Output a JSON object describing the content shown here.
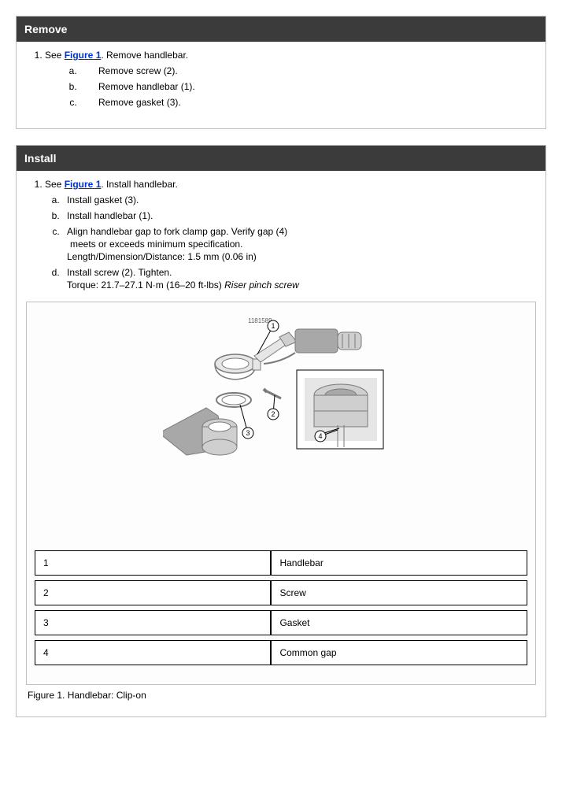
{
  "remove": {
    "title": "Remove",
    "step1_prefix": "See ",
    "step1_link": "Figure 1",
    "step1_suffix": ". Remove handlebar.",
    "substeps": [
      "Remove screw (2).",
      "Remove handlebar (1).",
      "Remove gasket (3)."
    ]
  },
  "install": {
    "title": "Install",
    "step1_prefix": "See ",
    "step1_link": "Figure 1",
    "step1_suffix": ". Install handlebar.",
    "a": "Install gasket (3).",
    "b": "Install handlebar (1).",
    "c_line1": "Align handlebar gap to fork clamp gap. Verify gap (4)",
    "c_line2": "meets or exceeds minimum specification.",
    "c_line3": "Length/Dimension/Distance: 1.5 mm (0.06 in)",
    "d_line1": "Install screw (2). Tighten.",
    "d_line2_prefix": "Torque: 21.7–27.1 N·m (16–20 ft-lbs) ",
    "d_line2_italic": "Riser pinch screw"
  },
  "diagram": {
    "code": "1181589",
    "callouts": [
      "1",
      "2",
      "3",
      "4"
    ],
    "colors": {
      "stroke": "#7a7a7a",
      "fill_light": "#e6e6e6",
      "fill_mid": "#cfcfcf",
      "fill_dark": "#a8a8a8",
      "text": "#5a5a5a"
    }
  },
  "legend": {
    "rows": [
      {
        "num": "1",
        "label": "Handlebar"
      },
      {
        "num": "2",
        "label": "Screw"
      },
      {
        "num": "3",
        "label": "Gasket"
      },
      {
        "num": "4",
        "label": "Common gap"
      }
    ]
  },
  "figure_caption": "Figure 1. Handlebar: Clip-on"
}
